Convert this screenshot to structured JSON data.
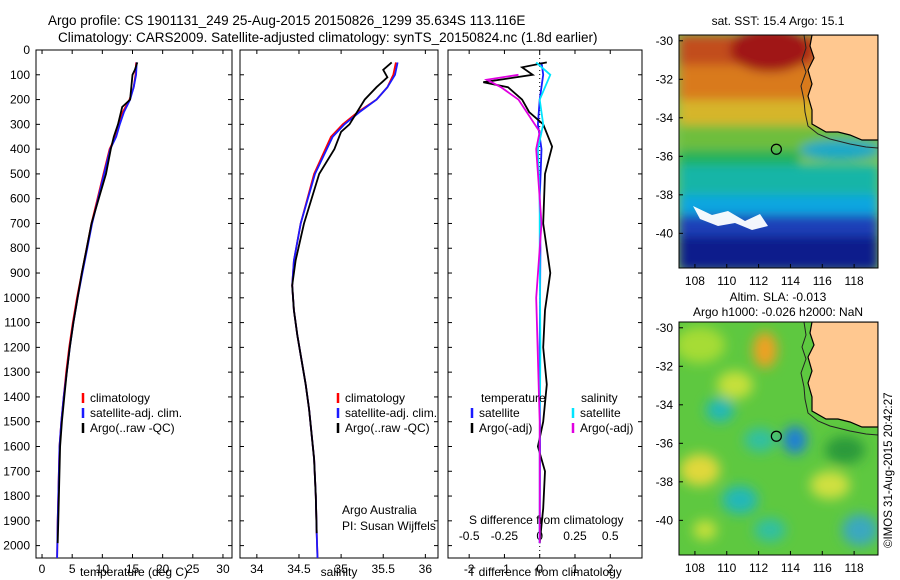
{
  "title": {
    "line1": "Argo profile: CS 1901131_249 25-Aug-2015 20150826_1299 35.634S 113.116E",
    "line2": "Climatology: CARS2009. Satellite-adjusted climatology: synTS_20150824.nc (1.8d earlier)"
  },
  "colors": {
    "climatology": "#ff0000",
    "satellite": "#1a1aff",
    "argo": "#000000",
    "salinity_satellite": "#00e5ff",
    "salinity_argo": "#e000e0",
    "land": "#ffc890",
    "coast": "#000000"
  },
  "credit": "©IMOS 31-Aug-2015 20:42:27",
  "chart_data": [
    {
      "type": "line",
      "panel": "temperature",
      "xlabel": "temperature (deg C)",
      "ylabel": "",
      "xlim": [
        -1,
        31.5
      ],
      "ylim": [
        2050,
        0
      ],
      "xticks": [
        0,
        5,
        10,
        15,
        20,
        25,
        30
      ],
      "yticks": [
        0,
        100,
        200,
        300,
        400,
        500,
        600,
        700,
        800,
        900,
        1000,
        1100,
        1200,
        1300,
        1400,
        1500,
        1600,
        1700,
        1800,
        1900,
        2000
      ],
      "legend": [
        "climatology",
        "satellite-adj. clim.",
        "Argo(..raw -QC)"
      ],
      "series": [
        {
          "name": "climatology",
          "color_key": "climatology",
          "x": [
            15.6,
            15.5,
            15.2,
            14.5,
            13.4,
            12.8,
            12.2,
            11.2,
            10.2,
            9.2,
            8.2,
            7.4,
            6.6,
            5.8,
            5.1,
            4.5,
            4.0,
            3.6,
            3.2,
            2.9,
            2.7,
            2.6,
            2.5
          ],
          "y": [
            50,
            100,
            150,
            200,
            250,
            300,
            350,
            400,
            500,
            600,
            700,
            800,
            900,
            1000,
            1100,
            1200,
            1300,
            1400,
            1500,
            1600,
            1800,
            1900,
            2050
          ]
        },
        {
          "name": "satellite-adj. clim.",
          "color_key": "satellite",
          "x": [
            15.7,
            15.6,
            15.2,
            14.6,
            13.6,
            12.9,
            12.3,
            11.3,
            10.3,
            9.3,
            8.3,
            7.5,
            6.7,
            5.9,
            5.2,
            4.6,
            4.1,
            3.6,
            3.2,
            2.9,
            2.7,
            2.6,
            2.5
          ],
          "y": [
            50,
            100,
            150,
            200,
            250,
            300,
            350,
            400,
            500,
            600,
            700,
            800,
            900,
            1000,
            1100,
            1200,
            1300,
            1400,
            1500,
            1600,
            1800,
            1900,
            2050
          ]
        },
        {
          "name": "Argo(..raw -QC)",
          "color_key": "argo",
          "x": [
            15.8,
            15.4,
            15.0,
            14.6,
            13.3,
            12.6,
            11.9,
            11.4,
            10.6,
            9.4,
            8.2,
            7.4,
            6.6,
            5.9,
            5.2,
            4.6,
            4.1,
            3.7,
            3.3,
            3.0,
            2.8,
            2.7,
            2.6
          ],
          "y": [
            50,
            80,
            100,
            200,
            230,
            300,
            350,
            400,
            500,
            600,
            700,
            800,
            900,
            1000,
            1100,
            1200,
            1300,
            1400,
            1500,
            1600,
            1800,
            1900,
            1990
          ]
        }
      ]
    },
    {
      "type": "line",
      "panel": "salinity",
      "xlabel": "salinity",
      "ylabel": "",
      "xlim": [
        33.8,
        36.15
      ],
      "ylim": [
        2050,
        0
      ],
      "xticks": [
        34,
        34.5,
        35,
        35.5,
        36
      ],
      "legend": [
        "climatology",
        "satellite-adj. clim.",
        "Argo(..raw -QC)"
      ],
      "annotation": [
        "Argo Australia",
        "PI: Susan Wijffels"
      ],
      "series": [
        {
          "name": "climatology",
          "color_key": "climatology",
          "x": [
            35.65,
            35.62,
            35.55,
            35.42,
            35.2,
            35.02,
            34.88,
            34.68,
            34.52,
            34.44,
            34.42,
            34.44,
            34.48,
            34.53,
            34.58,
            34.62,
            34.65,
            34.68,
            34.7,
            34.71,
            34.72
          ],
          "y": [
            50,
            100,
            150,
            200,
            250,
            300,
            350,
            500,
            700,
            850,
            950,
            1050,
            1150,
            1250,
            1350,
            1450,
            1550,
            1650,
            1800,
            1950,
            2050
          ]
        },
        {
          "name": "satellite-adj. clim.",
          "color_key": "satellite",
          "x": [
            35.67,
            35.64,
            35.55,
            35.42,
            35.22,
            35.04,
            34.9,
            34.69,
            34.52,
            34.44,
            34.42,
            34.44,
            34.48,
            34.53,
            34.58,
            34.62,
            34.65,
            34.68,
            34.7,
            34.71,
            34.72
          ],
          "y": [
            50,
            100,
            150,
            200,
            250,
            300,
            350,
            500,
            700,
            850,
            950,
            1050,
            1150,
            1250,
            1350,
            1450,
            1550,
            1650,
            1800,
            1950,
            2050
          ]
        },
        {
          "name": "Argo(..raw -QC)",
          "color_key": "argo",
          "x": [
            35.6,
            35.5,
            35.55,
            35.42,
            35.28,
            35.1,
            35.0,
            34.92,
            34.74,
            34.56,
            34.46,
            34.42,
            34.44,
            34.48,
            34.53,
            34.58,
            34.62,
            34.65,
            34.68,
            34.7,
            34.71
          ],
          "y": [
            50,
            80,
            110,
            150,
            200,
            300,
            330,
            400,
            500,
            700,
            850,
            950,
            1050,
            1150,
            1250,
            1350,
            1450,
            1550,
            1650,
            1800,
            1950
          ]
        }
      ]
    },
    {
      "type": "line",
      "panel": "differences",
      "xlabel": "T difference from climatology",
      "top_axis_label": "S difference from climatology",
      "xlim": [
        -2.6,
        2.9
      ],
      "top_xlim": [
        -0.65,
        0.725
      ],
      "ylim": [
        2050,
        0
      ],
      "xticks": [
        -2,
        -1,
        0,
        1,
        2
      ],
      "top_xticks": [
        "-0.5",
        "-0.25",
        "0",
        "0.25",
        "0.5"
      ],
      "legend_headers": [
        "temperature",
        "salinity"
      ],
      "legend": [
        "satellite",
        "Argo(-adj)",
        "satellite",
        "Argo(-adj)"
      ],
      "series": [
        {
          "name": "satellite",
          "group": "temperature",
          "color_key": "satellite",
          "x": [
            0.05,
            0.1,
            0.0,
            -0.05,
            0.05,
            0.0,
            0.02,
            0.0,
            0.01,
            0.0
          ],
          "y": [
            50,
            100,
            200,
            300,
            400,
            600,
            800,
            1200,
            1600,
            1990
          ]
        },
        {
          "name": "Argo(-adj)",
          "group": "temperature",
          "color_key": "argo",
          "x": [
            0.2,
            -0.5,
            -0.2,
            -1.6,
            -0.9,
            -0.5,
            -0.3,
            0.1,
            0.35,
            0.15,
            0.1,
            0.3,
            0.15,
            0.1,
            0.2,
            0.1,
            -0.05,
            0.15,
            0.1,
            0.0
          ],
          "y": [
            50,
            70,
            100,
            130,
            150,
            200,
            250,
            300,
            390,
            500,
            700,
            900,
            1050,
            1200,
            1350,
            1500,
            1600,
            1700,
            1850,
            1990
          ]
        },
        {
          "name": "satellite",
          "group": "salinity",
          "color_key": "salinity_satellite",
          "x": [
            -0.1,
            0.3,
            0.0,
            0.1,
            -0.05,
            0.0,
            0.0,
            0.02,
            0.0,
            0.0
          ],
          "y": [
            50,
            100,
            200,
            300,
            400,
            600,
            800,
            1200,
            1600,
            1990
          ]
        },
        {
          "name": "Argo(-adj)",
          "group": "salinity",
          "color_key": "salinity_argo",
          "x": [
            -0.6,
            -1.5,
            -1.1,
            -0.6,
            0.0,
            -0.1,
            0.05,
            -0.1,
            0.0,
            0.0
          ],
          "y": [
            100,
            120,
            150,
            200,
            330,
            400,
            700,
            1000,
            1500,
            1990
          ]
        }
      ]
    },
    {
      "type": "heatmap",
      "panel": "sst_map",
      "title": "sat. SST: 15.4  Argo: 15.1",
      "xlim": [
        107,
        119.5
      ],
      "ylim": [
        -41.8,
        -29.7
      ],
      "xticks": [
        108,
        110,
        112,
        114,
        116,
        118
      ],
      "yticks": [
        -30,
        -32,
        -34,
        -36,
        -38,
        -40
      ],
      "float_position": [
        113.116,
        -35.634
      ]
    },
    {
      "type": "heatmap",
      "panel": "sla_map",
      "title_lines": [
        "Altim. SLA: -0.013",
        "Argo h1000: -0.026  h2000: NaN"
      ],
      "xlim": [
        107,
        119.5
      ],
      "ylim": [
        -41.8,
        -29.7
      ],
      "xticks": [
        108,
        110,
        112,
        114,
        116,
        118
      ],
      "yticks": [
        -30,
        -32,
        -34,
        -36,
        -38,
        -40
      ],
      "float_position": [
        113.116,
        -35.634
      ]
    }
  ]
}
